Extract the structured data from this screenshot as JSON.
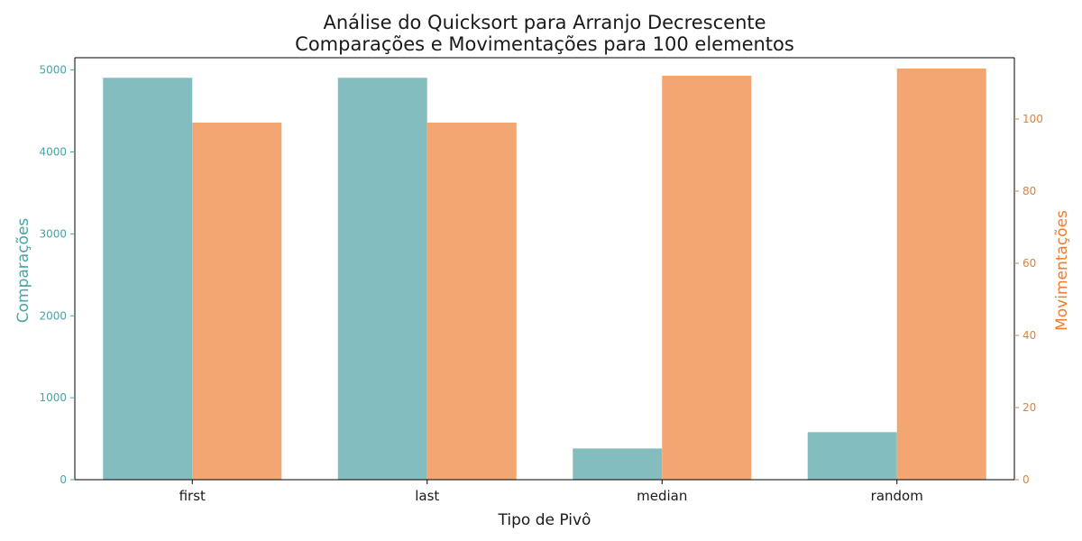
{
  "chart_data": {
    "type": "bar",
    "title_line1": "Análise do Quicksort para Arranjo Decrescente",
    "title_line2": "Comparações e Movimentações para 100 elementos",
    "xlabel": "Tipo de Pivô",
    "ylabel_left": "Comparações",
    "ylabel_right": "Movimentações",
    "categories": [
      "first",
      "last",
      "median",
      "random"
    ],
    "series": [
      {
        "name": "Comparações",
        "axis": "left",
        "color": "#83bdbf",
        "values": [
          4905,
          4905,
          381,
          580
        ]
      },
      {
        "name": "Movimentações",
        "axis": "right",
        "color": "#f4a672",
        "values": [
          99,
          99,
          112,
          114
        ]
      }
    ],
    "ylim_left": [
      0,
      5150
    ],
    "ylim_right": [
      0,
      117
    ],
    "yticks_left": [
      0,
      1000,
      2000,
      3000,
      4000,
      5000
    ],
    "yticks_right": [
      0,
      20,
      40,
      60,
      80,
      100
    ],
    "left_axis_color": "#4aa3a5",
    "right_axis_color": "#ee7d2f",
    "grid": false
  }
}
